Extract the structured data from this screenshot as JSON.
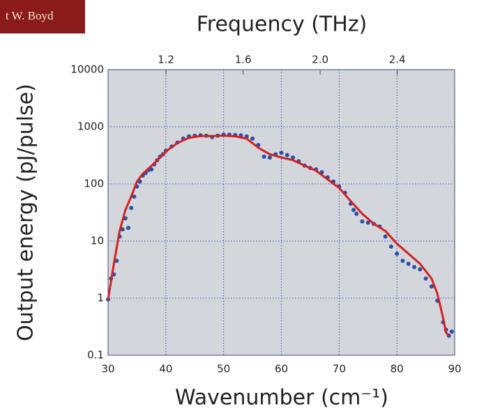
{
  "logo_text": "t W. Boyd",
  "chart_data": {
    "type": "scatter",
    "x2label": "Frequency (THz)",
    "xlabel": "Wavenumber (cm⁻¹)",
    "ylabel": "Output energy (pJ/pulse)",
    "xlim": [
      30,
      90
    ],
    "xticks": [
      30,
      40,
      50,
      60,
      70,
      80,
      90
    ],
    "x2lim": [
      0.8994,
      2.6981
    ],
    "x2ticks": [
      1.2,
      1.6,
      {
        "value": 2.0,
        "label": "2.0"
      },
      2.4
    ],
    "ylim": [
      0.1,
      10000
    ],
    "ylog": true,
    "yticks": [
      0.1,
      1,
      10,
      100,
      1000,
      10000
    ],
    "grid": true,
    "series": [
      {
        "kind": "points",
        "color": "#2a4fa8",
        "x": [
          30,
          30.5,
          31,
          31.5,
          32,
          32.5,
          33,
          33.5,
          34,
          34.5,
          35,
          35.5,
          36,
          36.5,
          37,
          37.5,
          38,
          38.5,
          39,
          39.5,
          40,
          41,
          42,
          43,
          44,
          45,
          46,
          47,
          48,
          49,
          50,
          51,
          52,
          53,
          54,
          55,
          56,
          57,
          58,
          59,
          60,
          61,
          62,
          63,
          64,
          65,
          66,
          67,
          68,
          69,
          70,
          71,
          72,
          72.5,
          73,
          74,
          75,
          76,
          77,
          78,
          79,
          80,
          81,
          82,
          83,
          84,
          85,
          86,
          87,
          88,
          88.5,
          89,
          89.5
        ],
        "values": [
          0.95,
          2.2,
          2.6,
          4.5,
          12,
          16,
          25,
          17,
          38,
          60,
          90,
          110,
          140,
          155,
          175,
          180,
          220,
          260,
          300,
          330,
          380,
          450,
          530,
          620,
          680,
          700,
          710,
          700,
          660,
          700,
          730,
          730,
          720,
          710,
          680,
          620,
          480,
          300,
          290,
          330,
          350,
          320,
          290,
          250,
          210,
          190,
          180,
          160,
          130,
          110,
          90,
          70,
          45,
          35,
          30,
          22,
          21,
          20,
          18,
          12,
          8,
          6,
          4.5,
          4,
          3.5,
          3.2,
          2.2,
          1.6,
          0.9,
          0.38,
          0.28,
          0.22,
          0.26
        ]
      },
      {
        "kind": "line",
        "color": "#d42020",
        "x": [
          30,
          31,
          32,
          33,
          34,
          35,
          36,
          38,
          40,
          42,
          44,
          46,
          48,
          50,
          52,
          54,
          56,
          58,
          60,
          62,
          64,
          66,
          68,
          70,
          72,
          74,
          76,
          78,
          80,
          82,
          84,
          86,
          87,
          88,
          88.5,
          89
        ],
        "values": [
          0.95,
          4,
          15,
          35,
          60,
          110,
          150,
          230,
          370,
          520,
          640,
          690,
          690,
          700,
          680,
          620,
          430,
          330,
          290,
          260,
          210,
          170,
          120,
          85,
          50,
          30,
          20,
          15,
          9,
          6,
          4,
          2.2,
          1.2,
          0.45,
          0.25,
          0.22
        ]
      }
    ]
  }
}
